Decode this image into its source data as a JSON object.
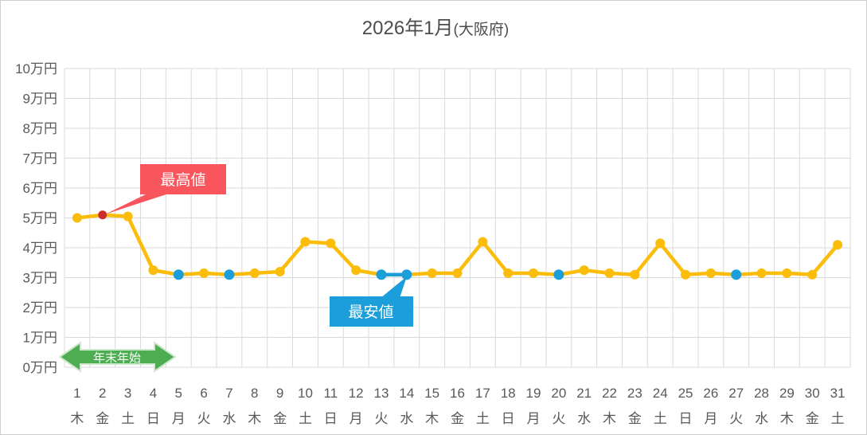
{
  "title": {
    "year_month": "2026年1月",
    "region": "(大阪府)"
  },
  "annotations": {
    "max_label": "最高値",
    "min_label": "最安値",
    "holiday_label": "年末年始"
  },
  "colors": {
    "line": "#FBBC0A",
    "point": "#FBBC0A",
    "min_point": "#1B9ED9",
    "min_callout": "#1B9ED9",
    "max_point": "#CE2B2B",
    "max_callout": "#F8555C",
    "holiday_arrow": "#4CAE51",
    "holiday_arrow_outline": "#CDE8CD",
    "grid": "#D9D9D9",
    "axis_text": "#595959",
    "title_text": "#4D4D4D",
    "callout_text": "#FFFFFF"
  },
  "chart_data": {
    "type": "line",
    "title": "2026年1月(大阪府)",
    "unit": "万円",
    "x": [
      1,
      2,
      3,
      4,
      5,
      6,
      7,
      8,
      9,
      10,
      11,
      12,
      13,
      14,
      15,
      16,
      17,
      18,
      19,
      20,
      21,
      22,
      23,
      24,
      25,
      26,
      27,
      28,
      29,
      30,
      31
    ],
    "weekdays": [
      "木",
      "金",
      "土",
      "日",
      "月",
      "火",
      "水",
      "木",
      "金",
      "土",
      "日",
      "月",
      "火",
      "水",
      "木",
      "金",
      "土",
      "日",
      "月",
      "火",
      "水",
      "木",
      "金",
      "土",
      "日",
      "月",
      "火",
      "水",
      "木",
      "金",
      "土"
    ],
    "values_man_yen": [
      5.0,
      5.1,
      5.05,
      3.25,
      3.1,
      3.15,
      3.1,
      3.15,
      3.2,
      4.2,
      4.15,
      3.25,
      3.1,
      3.1,
      3.15,
      3.15,
      4.2,
      3.15,
      3.15,
      3.1,
      3.25,
      3.15,
      3.1,
      4.15,
      3.1,
      3.15,
      3.1,
      3.15,
      3.15,
      3.1,
      4.1
    ],
    "y_ticks": [
      "0万円",
      "1万円",
      "2万円",
      "3万円",
      "4万円",
      "5万円",
      "6万円",
      "7万円",
      "8万円",
      "9万円",
      "10万円"
    ],
    "ylim": [
      0,
      10
    ],
    "min_days": [
      5,
      7,
      13,
      14,
      20,
      27
    ],
    "max_day": 2,
    "holiday_span_days": [
      1,
      4
    ],
    "grid": true,
    "legend": false
  }
}
